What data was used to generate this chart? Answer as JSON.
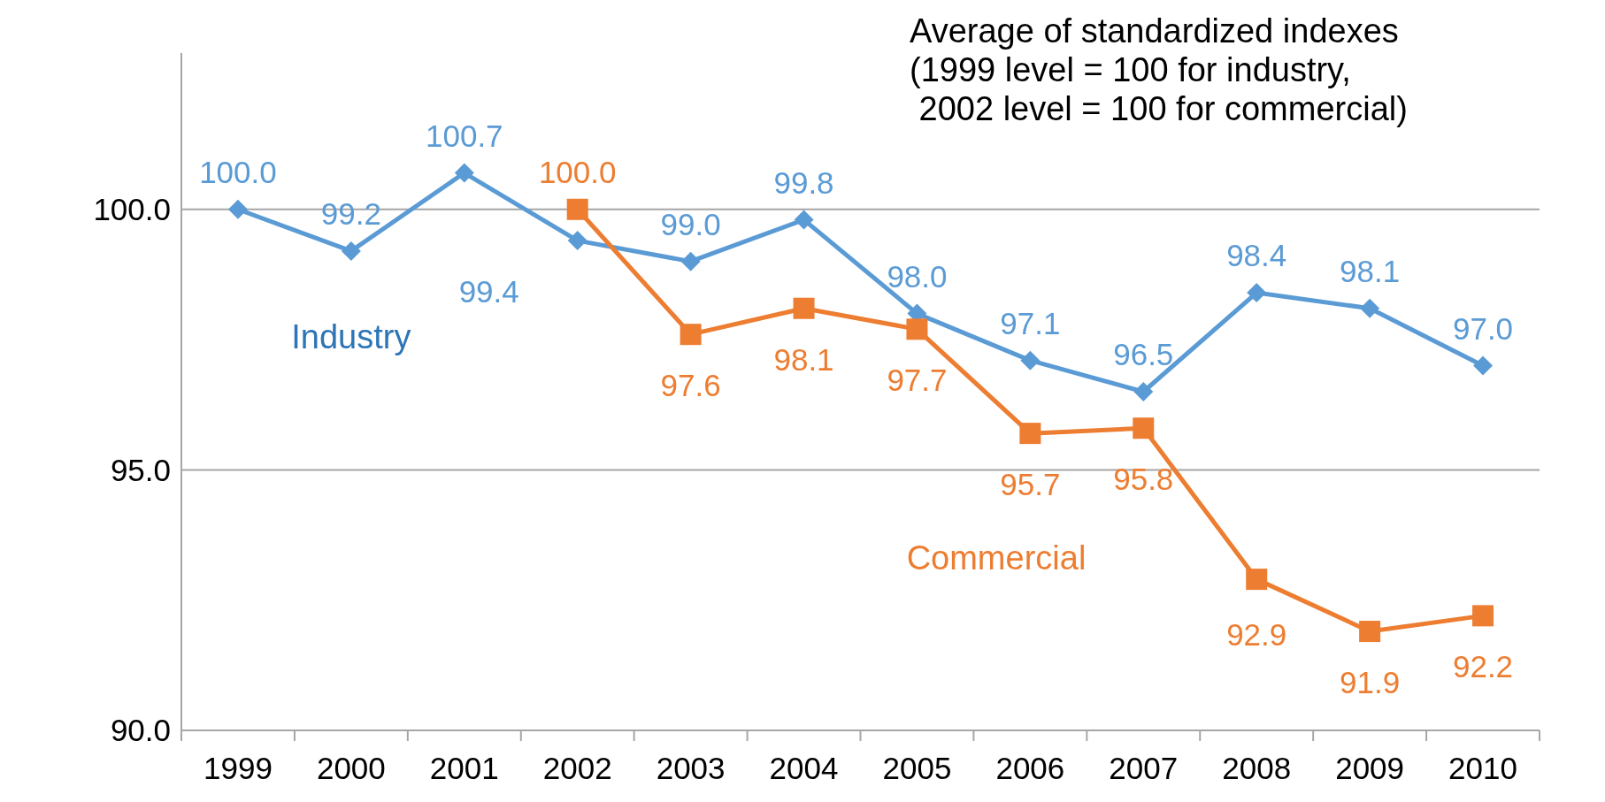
{
  "chart_data": {
    "type": "line",
    "title": "Average of standardized indexes\n(1999 level = 100 for industry,\n 2002 level = 100 for commercial)",
    "categories": [
      "1999",
      "2000",
      "2001",
      "2002",
      "2003",
      "2004",
      "2005",
      "2006",
      "2007",
      "2008",
      "2009",
      "2010"
    ],
    "series": [
      {
        "name": "Industry",
        "color": "#5b9bd5",
        "marker": "diamond",
        "values": [
          100.0,
          99.2,
          100.7,
          99.4,
          99.0,
          99.8,
          98.0,
          97.1,
          96.5,
          98.4,
          98.1,
          97.0
        ],
        "value_labels": [
          "100.0",
          "99.2",
          "100.7",
          "99.4",
          "99.0",
          "99.8",
          "98.0",
          "97.1",
          "96.5",
          "98.4",
          "98.1",
          "97.0"
        ]
      },
      {
        "name": "Commercial",
        "color": "#ed7d31",
        "marker": "square",
        "values": [
          null,
          null,
          null,
          100.0,
          97.6,
          98.1,
          97.7,
          95.7,
          95.8,
          92.9,
          91.9,
          92.2
        ],
        "value_labels": [
          null,
          null,
          null,
          "100.0",
          "97.6",
          "98.1",
          "97.7",
          "95.7",
          "95.8",
          "92.9",
          "91.9",
          "92.2"
        ]
      }
    ],
    "ylim": [
      90,
      103
    ],
    "yticks": [
      {
        "value": 90,
        "label": "90.0"
      },
      {
        "value": 95,
        "label": "95.0"
      },
      {
        "value": 100,
        "label": "100.0"
      }
    ],
    "grid": "y"
  }
}
